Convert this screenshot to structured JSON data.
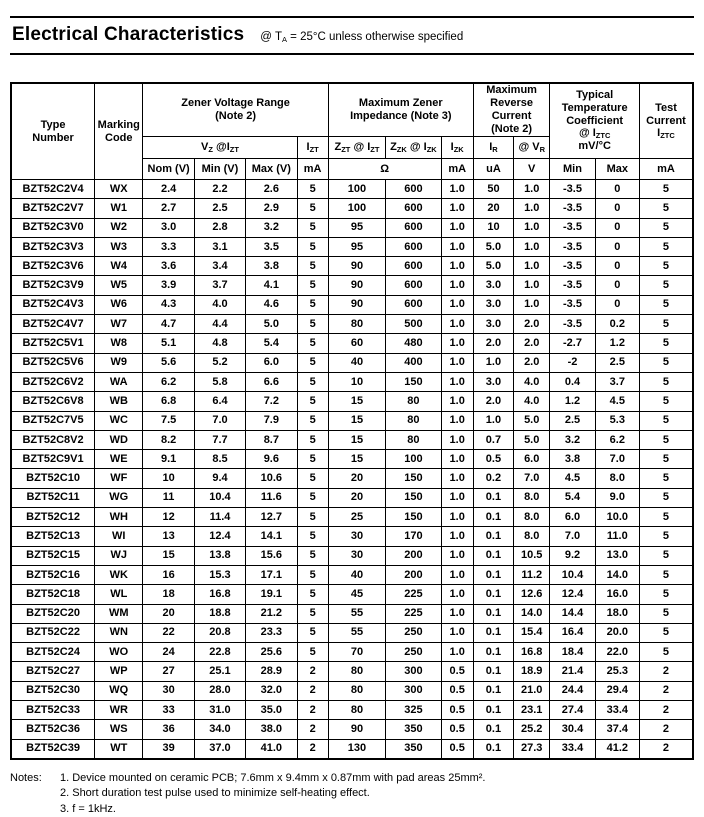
{
  "header": {
    "title": "Electrical Characteristics",
    "condition_html": "@ T<sub>A</sub> = 25°C unless otherwise specified"
  },
  "table": {
    "column_keys": [
      "cell-type-number",
      "cell-marking-code",
      "cell-vz-nom",
      "cell-vz-min",
      "cell-vz-max",
      "cell-izt",
      "cell-zzt-impedance",
      "cell-zzk-impedance",
      "cell-izk",
      "cell-reverse-current-ir",
      "cell-reverse-voltage-vr",
      "cell-temp-coeff-min",
      "cell-temp-coeff-max",
      "cell-test-current"
    ],
    "header": {
      "type_number_html": "Type<br>Number",
      "marking_code_html": "Marking<br>Code",
      "group_zener_voltage_html": "Zener Voltage Range<br>(Note 2)",
      "group_impedance_html": "Maximum Zener<br>Impedance (Note 3)",
      "group_reverse_current_html": "Maximum<br>Reverse<br>Current<br>(Note 2)",
      "group_temp_coeff_html": "Typical<br>Temperature<br>Coefficient<br>@ I<sub>ZTC</sub><br>mV/°C",
      "group_test_current_html": "Test<br>Current<br>I<sub>ZTC</sub>",
      "sub_vz_html": "V<sub>Z</sub> @I<sub>ZT</sub>",
      "sub_izt_html": "I<sub>ZT</sub>",
      "sub_zzt_html": "Z<sub>ZT</sub> @ I<sub>ZT</sub>",
      "sub_zzk_html": "Z<sub>ZK</sub> @ I<sub>ZK</sub>",
      "sub_izk_html": "I<sub>ZK</sub>",
      "sub_ir_html": "I<sub>R</sub>",
      "sub_vr_html": "@ V<sub>R</sub>",
      "unit_nom": "Nom (V)",
      "unit_min": "Min (V)",
      "unit_max": "Max (V)",
      "unit_izt": "mA",
      "unit_ohm": "Ω",
      "unit_izk": "mA",
      "unit_ir": "uA",
      "unit_vr": "V",
      "unit_tc_min": "Min",
      "unit_tc_max": "Max",
      "unit_test": "mA"
    },
    "rows": [
      [
        "BZT52C2V4",
        "WX",
        "2.4",
        "2.2",
        "2.6",
        "5",
        "100",
        "600",
        "1.0",
        "50",
        "1.0",
        "-3.5",
        "0",
        "5"
      ],
      [
        "BZT52C2V7",
        "W1",
        "2.7",
        "2.5",
        "2.9",
        "5",
        "100",
        "600",
        "1.0",
        "20",
        "1.0",
        "-3.5",
        "0",
        "5"
      ],
      [
        "BZT52C3V0",
        "W2",
        "3.0",
        "2.8",
        "3.2",
        "5",
        "95",
        "600",
        "1.0",
        "10",
        "1.0",
        "-3.5",
        "0",
        "5"
      ],
      [
        "BZT52C3V3",
        "W3",
        "3.3",
        "3.1",
        "3.5",
        "5",
        "95",
        "600",
        "1.0",
        "5.0",
        "1.0",
        "-3.5",
        "0",
        "5"
      ],
      [
        "BZT52C3V6",
        "W4",
        "3.6",
        "3.4",
        "3.8",
        "5",
        "90",
        "600",
        "1.0",
        "5.0",
        "1.0",
        "-3.5",
        "0",
        "5"
      ],
      [
        "BZT52C3V9",
        "W5",
        "3.9",
        "3.7",
        "4.1",
        "5",
        "90",
        "600",
        "1.0",
        "3.0",
        "1.0",
        "-3.5",
        "0",
        "5"
      ],
      [
        "BZT52C4V3",
        "W6",
        "4.3",
        "4.0",
        "4.6",
        "5",
        "90",
        "600",
        "1.0",
        "3.0",
        "1.0",
        "-3.5",
        "0",
        "5"
      ],
      [
        "BZT52C4V7",
        "W7",
        "4.7",
        "4.4",
        "5.0",
        "5",
        "80",
        "500",
        "1.0",
        "3.0",
        "2.0",
        "-3.5",
        "0.2",
        "5"
      ],
      [
        "BZT52C5V1",
        "W8",
        "5.1",
        "4.8",
        "5.4",
        "5",
        "60",
        "480",
        "1.0",
        "2.0",
        "2.0",
        "-2.7",
        "1.2",
        "5"
      ],
      [
        "BZT52C5V6",
        "W9",
        "5.6",
        "5.2",
        "6.0",
        "5",
        "40",
        "400",
        "1.0",
        "1.0",
        "2.0",
        "-2",
        "2.5",
        "5"
      ],
      [
        "BZT52C6V2",
        "WA",
        "6.2",
        "5.8",
        "6.6",
        "5",
        "10",
        "150",
        "1.0",
        "3.0",
        "4.0",
        "0.4",
        "3.7",
        "5"
      ],
      [
        "BZT52C6V8",
        "WB",
        "6.8",
        "6.4",
        "7.2",
        "5",
        "15",
        "80",
        "1.0",
        "2.0",
        "4.0",
        "1.2",
        "4.5",
        "5"
      ],
      [
        "BZT52C7V5",
        "WC",
        "7.5",
        "7.0",
        "7.9",
        "5",
        "15",
        "80",
        "1.0",
        "1.0",
        "5.0",
        "2.5",
        "5.3",
        "5"
      ],
      [
        "BZT52C8V2",
        "WD",
        "8.2",
        "7.7",
        "8.7",
        "5",
        "15",
        "80",
        "1.0",
        "0.7",
        "5.0",
        "3.2",
        "6.2",
        "5"
      ],
      [
        "BZT52C9V1",
        "WE",
        "9.1",
        "8.5",
        "9.6",
        "5",
        "15",
        "100",
        "1.0",
        "0.5",
        "6.0",
        "3.8",
        "7.0",
        "5"
      ],
      [
        "BZT52C10",
        "WF",
        "10",
        "9.4",
        "10.6",
        "5",
        "20",
        "150",
        "1.0",
        "0.2",
        "7.0",
        "4.5",
        "8.0",
        "5"
      ],
      [
        "BZT52C11",
        "WG",
        "11",
        "10.4",
        "11.6",
        "5",
        "20",
        "150",
        "1.0",
        "0.1",
        "8.0",
        "5.4",
        "9.0",
        "5"
      ],
      [
        "BZT52C12",
        "WH",
        "12",
        "11.4",
        "12.7",
        "5",
        "25",
        "150",
        "1.0",
        "0.1",
        "8.0",
        "6.0",
        "10.0",
        "5"
      ],
      [
        "BZT52C13",
        "WI",
        "13",
        "12.4",
        "14.1",
        "5",
        "30",
        "170",
        "1.0",
        "0.1",
        "8.0",
        "7.0",
        "11.0",
        "5"
      ],
      [
        "BZT52C15",
        "WJ",
        "15",
        "13.8",
        "15.6",
        "5",
        "30",
        "200",
        "1.0",
        "0.1",
        "10.5",
        "9.2",
        "13.0",
        "5"
      ],
      [
        "BZT52C16",
        "WK",
        "16",
        "15.3",
        "17.1",
        "5",
        "40",
        "200",
        "1.0",
        "0.1",
        "11.2",
        "10.4",
        "14.0",
        "5"
      ],
      [
        "BZT52C18",
        "WL",
        "18",
        "16.8",
        "19.1",
        "5",
        "45",
        "225",
        "1.0",
        "0.1",
        "12.6",
        "12.4",
        "16.0",
        "5"
      ],
      [
        "BZT52C20",
        "WM",
        "20",
        "18.8",
        "21.2",
        "5",
        "55",
        "225",
        "1.0",
        "0.1",
        "14.0",
        "14.4",
        "18.0",
        "5"
      ],
      [
        "BZT52C22",
        "WN",
        "22",
        "20.8",
        "23.3",
        "5",
        "55",
        "250",
        "1.0",
        "0.1",
        "15.4",
        "16.4",
        "20.0",
        "5"
      ],
      [
        "BZT52C24",
        "WO",
        "24",
        "22.8",
        "25.6",
        "5",
        "70",
        "250",
        "1.0",
        "0.1",
        "16.8",
        "18.4",
        "22.0",
        "5"
      ],
      [
        "BZT52C27",
        "WP",
        "27",
        "25.1",
        "28.9",
        "2",
        "80",
        "300",
        "0.5",
        "0.1",
        "18.9",
        "21.4",
        "25.3",
        "2"
      ],
      [
        "BZT52C30",
        "WQ",
        "30",
        "28.0",
        "32.0",
        "2",
        "80",
        "300",
        "0.5",
        "0.1",
        "21.0",
        "24.4",
        "29.4",
        "2"
      ],
      [
        "BZT52C33",
        "WR",
        "33",
        "31.0",
        "35.0",
        "2",
        "80",
        "325",
        "0.5",
        "0.1",
        "23.1",
        "27.4",
        "33.4",
        "2"
      ],
      [
        "BZT52C36",
        "WS",
        "36",
        "34.0",
        "38.0",
        "2",
        "90",
        "350",
        "0.5",
        "0.1",
        "25.2",
        "30.4",
        "37.4",
        "2"
      ],
      [
        "BZT52C39",
        "WT",
        "39",
        "37.0",
        "41.0",
        "2",
        "130",
        "350",
        "0.5",
        "0.1",
        "27.3",
        "33.4",
        "41.2",
        "2"
      ]
    ]
  },
  "notes": {
    "label": "Notes:",
    "items": [
      "1. Device mounted on ceramic PCB; 7.6mm x 9.4mm x 0.87mm with pad areas 25mm².",
      "2. Short duration test pulse used to minimize self-heating effect.",
      "3. f = 1kHz."
    ]
  }
}
